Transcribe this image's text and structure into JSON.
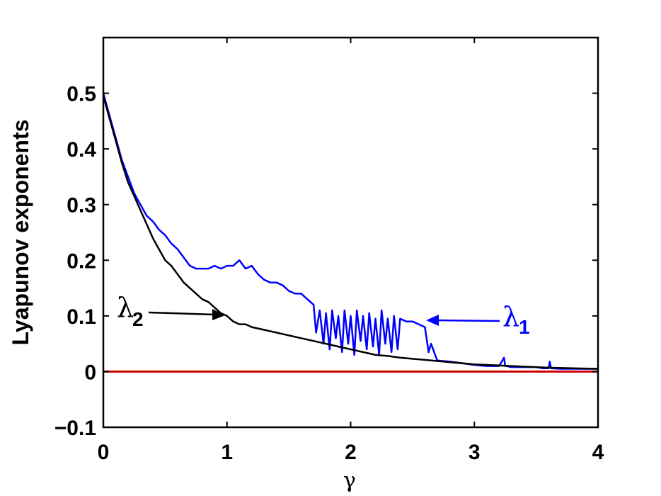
{
  "chart_data": {
    "type": "line",
    "title": "",
    "xlabel": "γ",
    "ylabel": "Lyapunov exponents",
    "xlim": [
      0,
      4
    ],
    "ylim": [
      -0.1,
      0.6
    ],
    "xticks": [
      0,
      1,
      2,
      3,
      4
    ],
    "xtick_labels": [
      "0",
      "1",
      "2",
      "3",
      "4"
    ],
    "yticks": [
      -0.1,
      0,
      0.1,
      0.2,
      0.3,
      0.4,
      0.5
    ],
    "ytick_labels": [
      "−0.1",
      "0",
      "0.1",
      "0.2",
      "0.3",
      "0.4",
      "0.5"
    ],
    "grid": false,
    "colors": {
      "lambda1": "#0000ff",
      "lambda2": "#000000",
      "zero_line": "#cc0000"
    },
    "series": [
      {
        "name": "λ1",
        "color": "#0000ff",
        "x": [
          0,
          0.05,
          0.1,
          0.15,
          0.2,
          0.25,
          0.3,
          0.35,
          0.4,
          0.45,
          0.5,
          0.55,
          0.6,
          0.65,
          0.7,
          0.75,
          0.8,
          0.85,
          0.9,
          0.95,
          1.0,
          1.05,
          1.1,
          1.15,
          1.2,
          1.25,
          1.3,
          1.35,
          1.4,
          1.45,
          1.5,
          1.55,
          1.6,
          1.65,
          1.7,
          1.72,
          1.75,
          1.78,
          1.8,
          1.83,
          1.85,
          1.88,
          1.9,
          1.93,
          1.95,
          1.98,
          2.0,
          2.03,
          2.05,
          2.08,
          2.1,
          2.13,
          2.15,
          2.18,
          2.2,
          2.23,
          2.25,
          2.28,
          2.3,
          2.33,
          2.35,
          2.38,
          2.4,
          2.45,
          2.5,
          2.55,
          2.6,
          2.63,
          2.65,
          2.7,
          2.8,
          2.9,
          3.0,
          3.1,
          3.2,
          3.24,
          3.25,
          3.26,
          3.3,
          3.4,
          3.5,
          3.55,
          3.6,
          3.61,
          3.62,
          3.7,
          3.8,
          3.9,
          4.0
        ],
        "y": [
          0.5,
          0.46,
          0.42,
          0.38,
          0.35,
          0.32,
          0.3,
          0.28,
          0.27,
          0.255,
          0.245,
          0.23,
          0.22,
          0.205,
          0.19,
          0.185,
          0.185,
          0.185,
          0.19,
          0.185,
          0.19,
          0.19,
          0.2,
          0.185,
          0.19,
          0.175,
          0.165,
          0.16,
          0.16,
          0.155,
          0.145,
          0.14,
          0.14,
          0.13,
          0.12,
          0.07,
          0.11,
          0.05,
          0.105,
          0.04,
          0.11,
          0.06,
          0.1,
          0.035,
          0.11,
          0.05,
          0.1,
          0.03,
          0.11,
          0.055,
          0.1,
          0.04,
          0.105,
          0.045,
          0.095,
          0.03,
          0.11,
          0.05,
          0.095,
          0.035,
          0.1,
          0.04,
          0.095,
          0.09,
          0.09,
          0.085,
          0.08,
          0.035,
          0.05,
          0.02,
          0.018,
          0.015,
          0.012,
          0.01,
          0.01,
          0.025,
          0.01,
          0.01,
          0.008,
          0.008,
          0.008,
          0.006,
          0.006,
          0.018,
          0.006,
          0.005,
          0.005,
          0.005,
          0.005
        ]
      },
      {
        "name": "λ2",
        "color": "#000000",
        "x": [
          0,
          0.05,
          0.1,
          0.15,
          0.2,
          0.25,
          0.3,
          0.35,
          0.4,
          0.45,
          0.5,
          0.55,
          0.6,
          0.65,
          0.7,
          0.75,
          0.8,
          0.85,
          0.9,
          0.95,
          1.0,
          1.05,
          1.1,
          1.15,
          1.2,
          1.3,
          1.4,
          1.5,
          1.6,
          1.7,
          1.8,
          1.9,
          2.0,
          2.1,
          2.2,
          2.3,
          2.4,
          2.5,
          2.6,
          2.7,
          2.8,
          2.9,
          3.0,
          3.2,
          3.4,
          3.6,
          3.8,
          4.0
        ],
        "y": [
          0.495,
          0.455,
          0.415,
          0.375,
          0.34,
          0.315,
          0.29,
          0.265,
          0.24,
          0.22,
          0.2,
          0.19,
          0.175,
          0.16,
          0.15,
          0.14,
          0.13,
          0.125,
          0.115,
          0.105,
          0.1,
          0.09,
          0.085,
          0.085,
          0.08,
          0.075,
          0.07,
          0.065,
          0.06,
          0.055,
          0.05,
          0.045,
          0.04,
          0.035,
          0.03,
          0.028,
          0.025,
          0.023,
          0.021,
          0.019,
          0.017,
          0.015,
          0.013,
          0.011,
          0.009,
          0.007,
          0.006,
          0.005
        ]
      },
      {
        "name": "",
        "color": "#cc0000",
        "x": [
          0,
          4
        ],
        "y": [
          0,
          0
        ]
      }
    ],
    "annotations": [
      {
        "symbol": "λ",
        "subscript": "2",
        "color": "#000000",
        "target": [
          1.0,
          0.1
        ]
      },
      {
        "symbol": "λ",
        "subscript": "1",
        "color": "#0000ff",
        "target": [
          2.6,
          0.09
        ]
      }
    ]
  }
}
